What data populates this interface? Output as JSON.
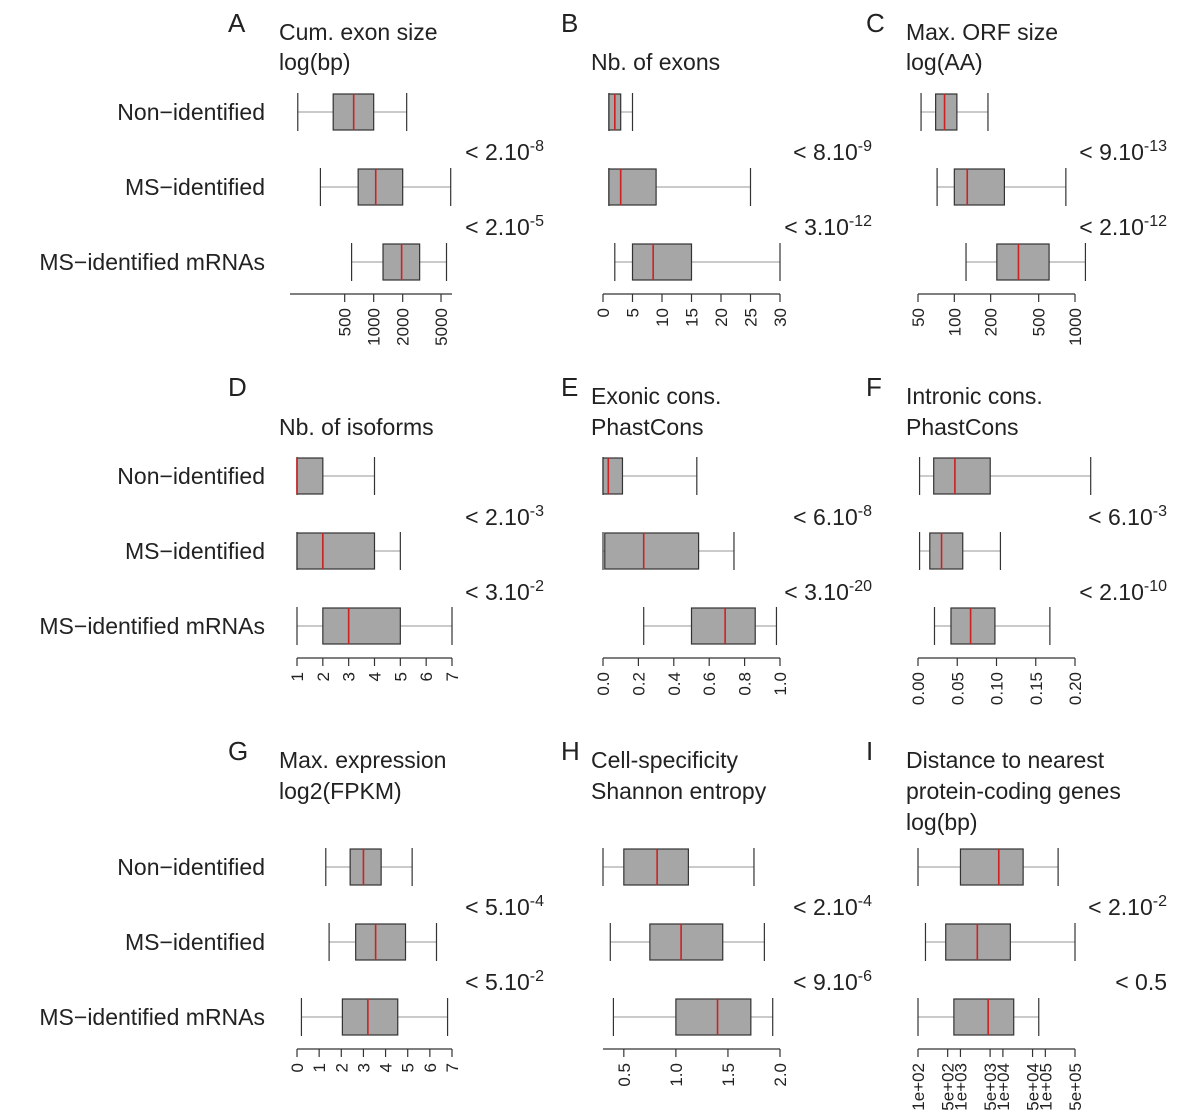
{
  "row_labels": [
    "Non−identified",
    "MS−identified",
    "MS−identified mRNAs"
  ],
  "colors": {
    "box_fill": "#a6a6a6",
    "median": "#cc2222",
    "stroke": "#333333",
    "whisker": "#aaaaaa"
  },
  "chart_data": [
    {
      "panel": "A",
      "type": "boxplot",
      "orientation": "horizontal",
      "title": [
        "Cum. exon size",
        "log(bp)"
      ],
      "scale": "log",
      "xlim": [
        160,
        6500
      ],
      "ticks": [
        {
          "v": 500,
          "label": "500"
        },
        {
          "v": 1000,
          "label": "1000"
        },
        {
          "v": 2000,
          "label": "2000"
        },
        {
          "v": 5000,
          "label": "5000"
        }
      ],
      "series": [
        {
          "name": "Non−identified",
          "min": 163,
          "q1": 380,
          "median": 620,
          "q3": 1000,
          "max": 2200
        },
        {
          "name": "MS−identified",
          "min": 280,
          "q1": 690,
          "median": 1050,
          "q3": 2000,
          "max": 6300
        },
        {
          "name": "MS−identified mRNAs",
          "min": 590,
          "q1": 1250,
          "median": 1950,
          "q3": 3000,
          "max": 5700
        }
      ],
      "pvalues": [
        {
          "base": "< 2.10",
          "exp": "-8"
        },
        {
          "base": "< 2.10",
          "exp": "-5"
        }
      ]
    },
    {
      "panel": "B",
      "type": "boxplot",
      "orientation": "horizontal",
      "title": [
        "",
        "Nb. of exons"
      ],
      "scale": "linear",
      "xlim": [
        0,
        30
      ],
      "ticks": [
        {
          "v": 0,
          "label": "0"
        },
        {
          "v": 5,
          "label": "5"
        },
        {
          "v": 10,
          "label": "10"
        },
        {
          "v": 15,
          "label": "15"
        },
        {
          "v": 20,
          "label": "20"
        },
        {
          "v": 25,
          "label": "25"
        },
        {
          "v": 30,
          "label": "30"
        }
      ],
      "series": [
        {
          "name": "Non−identified",
          "min": 1.0,
          "q1": 1.0,
          "median": 2.0,
          "q3": 3.0,
          "max": 5.0
        },
        {
          "name": "MS−identified",
          "min": 1.0,
          "q1": 1.0,
          "median": 3.0,
          "q3": 9.0,
          "max": 25.0
        },
        {
          "name": "MS−identified mRNAs",
          "min": 2.0,
          "q1": 5.0,
          "median": 8.5,
          "q3": 15.0,
          "max": 30.0
        }
      ],
      "pvalues": [
        {
          "base": "< 8.10",
          "exp": "-9"
        },
        {
          "base": "< 3.10",
          "exp": "-12"
        }
      ]
    },
    {
      "panel": "C",
      "type": "boxplot",
      "orientation": "horizontal",
      "title": [
        "Max. ORF size",
        "log(AA)"
      ],
      "scale": "log",
      "xlim": [
        50,
        1000
      ],
      "ticks": [
        {
          "v": 50,
          "label": "50"
        },
        {
          "v": 100,
          "label": "100"
        },
        {
          "v": 200,
          "label": "200"
        },
        {
          "v": 500,
          "label": "500"
        },
        {
          "v": 1000,
          "label": "1000"
        }
      ],
      "series": [
        {
          "name": "Non−identified",
          "min": 53,
          "q1": 70,
          "median": 83,
          "q3": 105,
          "max": 190
        },
        {
          "name": "MS−identified",
          "min": 72,
          "q1": 100,
          "median": 128,
          "q3": 260,
          "max": 840
        },
        {
          "name": "MS−identified mRNAs",
          "min": 125,
          "q1": 225,
          "median": 340,
          "q3": 610,
          "max": 1220
        }
      ],
      "pvalues": [
        {
          "base": "< 9.10",
          "exp": "-13"
        },
        {
          "base": "< 2.10",
          "exp": "-12"
        }
      ]
    },
    {
      "panel": "D",
      "type": "boxplot",
      "orientation": "horizontal",
      "title": [
        "",
        "Nb. of isoforms"
      ],
      "scale": "linear",
      "xlim": [
        1,
        7
      ],
      "ticks": [
        {
          "v": 1,
          "label": "1"
        },
        {
          "v": 2,
          "label": "2"
        },
        {
          "v": 3,
          "label": "3"
        },
        {
          "v": 4,
          "label": "4"
        },
        {
          "v": 5,
          "label": "5"
        },
        {
          "v": 6,
          "label": "6"
        },
        {
          "v": 7,
          "label": "7"
        }
      ],
      "series": [
        {
          "name": "Non−identified",
          "min": 1,
          "q1": 1,
          "median": 1,
          "q3": 2,
          "max": 4
        },
        {
          "name": "MS−identified",
          "min": 1,
          "q1": 1,
          "median": 2,
          "q3": 4,
          "max": 5
        },
        {
          "name": "MS−identified mRNAs",
          "min": 1,
          "q1": 2,
          "median": 3,
          "q3": 5,
          "max": 7
        }
      ],
      "pvalues": [
        {
          "base": "< 2.10",
          "exp": "-3"
        },
        {
          "base": "< 3.10",
          "exp": "-2"
        }
      ]
    },
    {
      "panel": "E",
      "type": "boxplot",
      "orientation": "horizontal",
      "title": [
        "Exonic cons.",
        "PhastCons"
      ],
      "scale": "linear",
      "xlim": [
        0,
        1
      ],
      "ticks": [
        {
          "v": 0.0,
          "label": "0.0"
        },
        {
          "v": 0.2,
          "label": "0.2"
        },
        {
          "v": 0.4,
          "label": "0.4"
        },
        {
          "v": 0.6,
          "label": "0.6"
        },
        {
          "v": 0.8,
          "label": "0.8"
        },
        {
          "v": 1.0,
          "label": "1.0"
        }
      ],
      "series": [
        {
          "name": "Non−identified",
          "min": 0.0,
          "q1": 0.0,
          "median": 0.03,
          "q3": 0.11,
          "max": 0.53
        },
        {
          "name": "MS−identified",
          "min": 0.0,
          "q1": 0.01,
          "median": 0.23,
          "q3": 0.54,
          "max": 0.74
        },
        {
          "name": "MS−identified mRNAs",
          "min": 0.23,
          "q1": 0.5,
          "median": 0.69,
          "q3": 0.86,
          "max": 0.98
        }
      ],
      "pvalues": [
        {
          "base": "< 6.10",
          "exp": "-8"
        },
        {
          "base": "< 3.10",
          "exp": "-20"
        }
      ]
    },
    {
      "panel": "F",
      "type": "boxplot",
      "orientation": "horizontal",
      "title": [
        "Intronic cons.",
        "PhastCons"
      ],
      "scale": "linear",
      "xlim": [
        0,
        0.2
      ],
      "ticks": [
        {
          "v": 0.0,
          "label": "0.00"
        },
        {
          "v": 0.05,
          "label": "0.05"
        },
        {
          "v": 0.1,
          "label": "0.10"
        },
        {
          "v": 0.15,
          "label": "0.15"
        },
        {
          "v": 0.2,
          "label": "0.20"
        }
      ],
      "series": [
        {
          "name": "Non−identified",
          "min": 0.002,
          "q1": 0.02,
          "median": 0.047,
          "q3": 0.092,
          "max": 0.22
        },
        {
          "name": "MS−identified",
          "min": 0.002,
          "q1": 0.015,
          "median": 0.03,
          "q3": 0.057,
          "max": 0.105
        },
        {
          "name": "MS−identified mRNAs",
          "min": 0.021,
          "q1": 0.042,
          "median": 0.067,
          "q3": 0.098,
          "max": 0.168
        }
      ],
      "pvalues": [
        {
          "base": "< 6.10",
          "exp": "-3"
        },
        {
          "base": "< 2.10",
          "exp": "-10"
        }
      ]
    },
    {
      "panel": "G",
      "type": "boxplot",
      "orientation": "horizontal",
      "title": [
        "Max. expression",
        "log2(FPKM)"
      ],
      "scale": "linear",
      "xlim": [
        0,
        7
      ],
      "ticks": [
        {
          "v": 0,
          "label": "0"
        },
        {
          "v": 1,
          "label": "1"
        },
        {
          "v": 2,
          "label": "2"
        },
        {
          "v": 3,
          "label": "3"
        },
        {
          "v": 4,
          "label": "4"
        },
        {
          "v": 5,
          "label": "5"
        },
        {
          "v": 6,
          "label": "6"
        },
        {
          "v": 7,
          "label": "7"
        }
      ],
      "series": [
        {
          "name": "Non−identified",
          "min": 1.3,
          "q1": 2.4,
          "median": 3.0,
          "q3": 3.8,
          "max": 5.2
        },
        {
          "name": "MS−identified",
          "min": 1.45,
          "q1": 2.65,
          "median": 3.55,
          "q3": 4.9,
          "max": 6.3
        },
        {
          "name": "MS−identified mRNAs",
          "min": 0.2,
          "q1": 2.05,
          "median": 3.2,
          "q3": 4.55,
          "max": 6.8
        }
      ],
      "pvalues": [
        {
          "base": "< 5.10",
          "exp": "-4"
        },
        {
          "base": "< 5.10",
          "exp": "-2"
        }
      ]
    },
    {
      "panel": "H",
      "type": "boxplot",
      "orientation": "horizontal",
      "title": [
        "Cell-specificity",
        "Shannon entropy"
      ],
      "scale": "linear",
      "xlim": [
        0.3,
        2.0
      ],
      "ticks": [
        {
          "v": 0.5,
          "label": "0.5"
        },
        {
          "v": 1.0,
          "label": "1.0"
        },
        {
          "v": 1.5,
          "label": "1.5"
        },
        {
          "v": 2.0,
          "label": "2.0"
        }
      ],
      "series": [
        {
          "name": "Non−identified",
          "min": 0.3,
          "q1": 0.5,
          "median": 0.82,
          "q3": 1.12,
          "max": 1.75
        },
        {
          "name": "MS−identified",
          "min": 0.37,
          "q1": 0.75,
          "median": 1.05,
          "q3": 1.45,
          "max": 1.85
        },
        {
          "name": "MS−identified mRNAs",
          "min": 0.4,
          "q1": 1.0,
          "median": 1.4,
          "q3": 1.72,
          "max": 1.93
        }
      ],
      "pvalues": [
        {
          "base": "< 2.10",
          "exp": "-4"
        },
        {
          "base": "< 9.10",
          "exp": "-6"
        }
      ]
    },
    {
      "panel": "I",
      "type": "boxplot",
      "orientation": "horizontal",
      "title": [
        "Distance to nearest",
        "protein-coding genes",
        "log(bp)"
      ],
      "scale": "log",
      "xlim": [
        100,
        500000
      ],
      "ticks": [
        {
          "v": 100,
          "label": "1e+02"
        },
        {
          "v": 500,
          "label": "5e+02"
        },
        {
          "v": 1000,
          "label": "1e+03"
        },
        {
          "v": 5000,
          "label": "5e+03"
        },
        {
          "v": 10000,
          "label": "1e+04"
        },
        {
          "v": 50000,
          "label": "5e+04"
        },
        {
          "v": 100000,
          "label": "1e+05"
        },
        {
          "v": 500000,
          "label": "5e+05"
        }
      ],
      "series": [
        {
          "name": "Non−identified",
          "min": 100,
          "q1": 1000,
          "median": 8000,
          "q3": 30000,
          "max": 200000
        },
        {
          "name": "MS−identified",
          "min": 150,
          "q1": 450,
          "median": 2500,
          "q3": 15000,
          "max": 500000
        },
        {
          "name": "MS−identified mRNAs",
          "min": 100,
          "q1": 700,
          "median": 4500,
          "q3": 18000,
          "max": 70000
        }
      ],
      "pvalues": [
        {
          "base": "< 2.10",
          "exp": "-2"
        },
        {
          "base": "< 0.5",
          "exp": ""
        }
      ]
    }
  ]
}
